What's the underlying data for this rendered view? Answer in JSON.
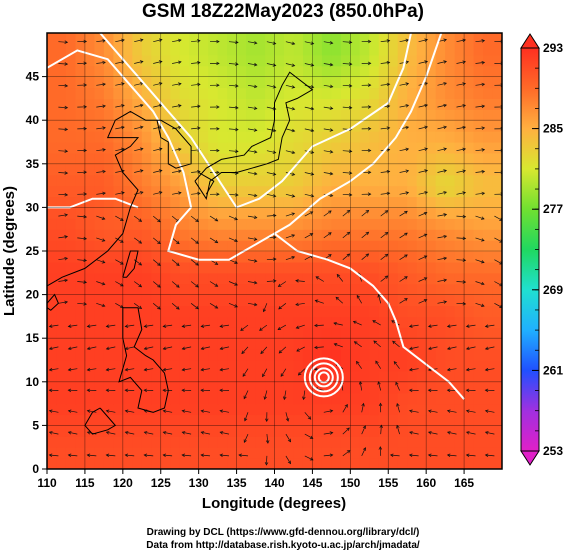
{
  "chart_data": {
    "type": "heatmap",
    "title": "GSM 18Z22May2023 (850.0hPa)",
    "xlabel": "Longitude (degrees)",
    "ylabel": "Latitude  (degrees)",
    "xlim": [
      110,
      170
    ],
    "ylim": [
      0,
      50
    ],
    "x_ticks": [
      110,
      115,
      120,
      125,
      130,
      135,
      140,
      145,
      150,
      155,
      160,
      165
    ],
    "y_ticks": [
      0,
      5,
      10,
      15,
      20,
      25,
      30,
      35,
      40,
      45
    ],
    "colorbar": {
      "label_ticks": [
        293,
        285,
        277,
        269,
        261,
        253
      ],
      "range": [
        253,
        293
      ],
      "colors": [
        "#e020c8",
        "#a030e0",
        "#2050ff",
        "#20b0ff",
        "#20e0d0",
        "#20d860",
        "#70e030",
        "#d8e830",
        "#ffb040",
        "#ff6a28",
        "#ff3020"
      ]
    },
    "temperature_field_K": {
      "lat_rows": [
        47.5,
        42.5,
        37.5,
        32.5,
        27.5,
        22.5,
        17.5,
        12.5,
        7.5,
        2.5
      ],
      "lon_cols": [
        112.5,
        117.5,
        122.5,
        127.5,
        132.5,
        137.5,
        142.5,
        147.5,
        152.5,
        157.5,
        162.5,
        167.5
      ],
      "values": [
        [
          289,
          287,
          283,
          281,
          280,
          279,
          280,
          278,
          280,
          284,
          287,
          289
        ],
        [
          289,
          288,
          285,
          282,
          281,
          280,
          281,
          281,
          282,
          285,
          287,
          288
        ],
        [
          289,
          289,
          287,
          283,
          281,
          281,
          282,
          283,
          284,
          285,
          285,
          286
        ],
        [
          290,
          290,
          288,
          286,
          283,
          283,
          283,
          285,
          285,
          285,
          282,
          284
        ],
        [
          291,
          290,
          290,
          288,
          287,
          287,
          287,
          288,
          288,
          288,
          287,
          286
        ],
        [
          292,
          292,
          292,
          291,
          291,
          291,
          291,
          291,
          291,
          290,
          289,
          289
        ],
        [
          292,
          292,
          292,
          292,
          292,
          292,
          292,
          292,
          292,
          291,
          291,
          290
        ],
        [
          292,
          292,
          292,
          292,
          292,
          292,
          292,
          293,
          292,
          292,
          291,
          291
        ],
        [
          292,
          292,
          292,
          292,
          292,
          292,
          292,
          292,
          292,
          291,
          291,
          291
        ],
        [
          291,
          291,
          291,
          291,
          291,
          291,
          291,
          291,
          291,
          291,
          291,
          291
        ]
      ]
    },
    "features": {
      "cyclone_center": [
        146.5,
        10.5
      ]
    },
    "grid": true
  },
  "footer": {
    "line1": "Drawing by DCL (https://www.gfd-dennou.org/library/dcl/)",
    "line2": "Data from http://database.rish.kyoto-u.ac.jp/arch/jmadata/"
  }
}
